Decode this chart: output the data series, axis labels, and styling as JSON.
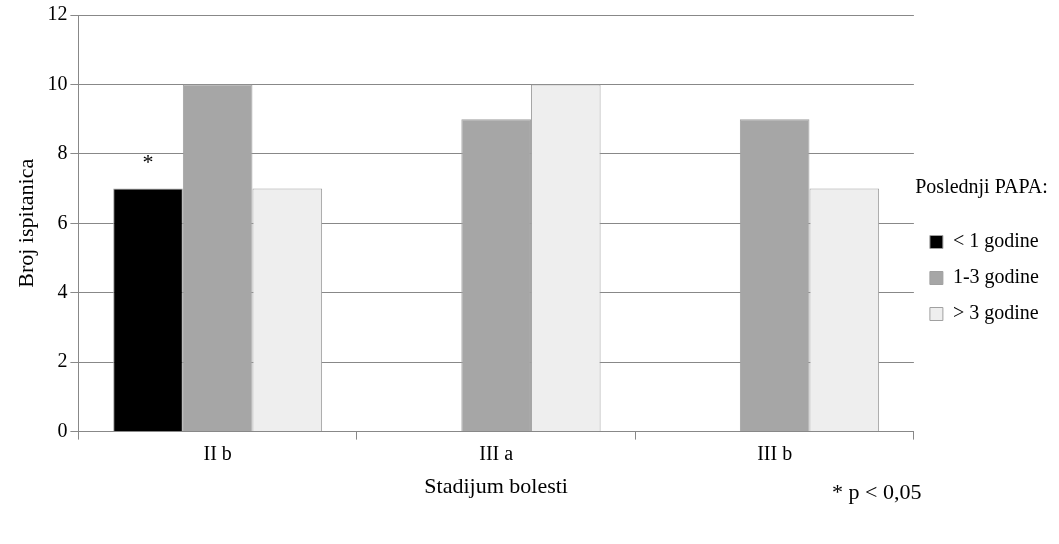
{
  "chart_data": {
    "type": "bar",
    "xlabel": "Stadijum bolesti",
    "ylabel": "Broj ispitanica",
    "legend_title": "Poslednji PAPA:",
    "categories": [
      "II b",
      "III a",
      "III b"
    ],
    "series": [
      {
        "name": "< 1 godine",
        "color": "#000000",
        "values": [
          7,
          0,
          0
        ]
      },
      {
        "name": "1-3 godine",
        "color": "#a6a6a6",
        "values": [
          10,
          9,
          9
        ]
      },
      {
        "name": "> 3 godine",
        "color": "#eeeeee",
        "values": [
          7,
          10,
          7
        ]
      }
    ],
    "ylim": [
      0,
      12
    ],
    "yticks": [
      0,
      2,
      4,
      6,
      8,
      10,
      12
    ],
    "grid": "y",
    "legend": "right",
    "annotations": [
      "*",
      "* p < 0,05"
    ]
  }
}
